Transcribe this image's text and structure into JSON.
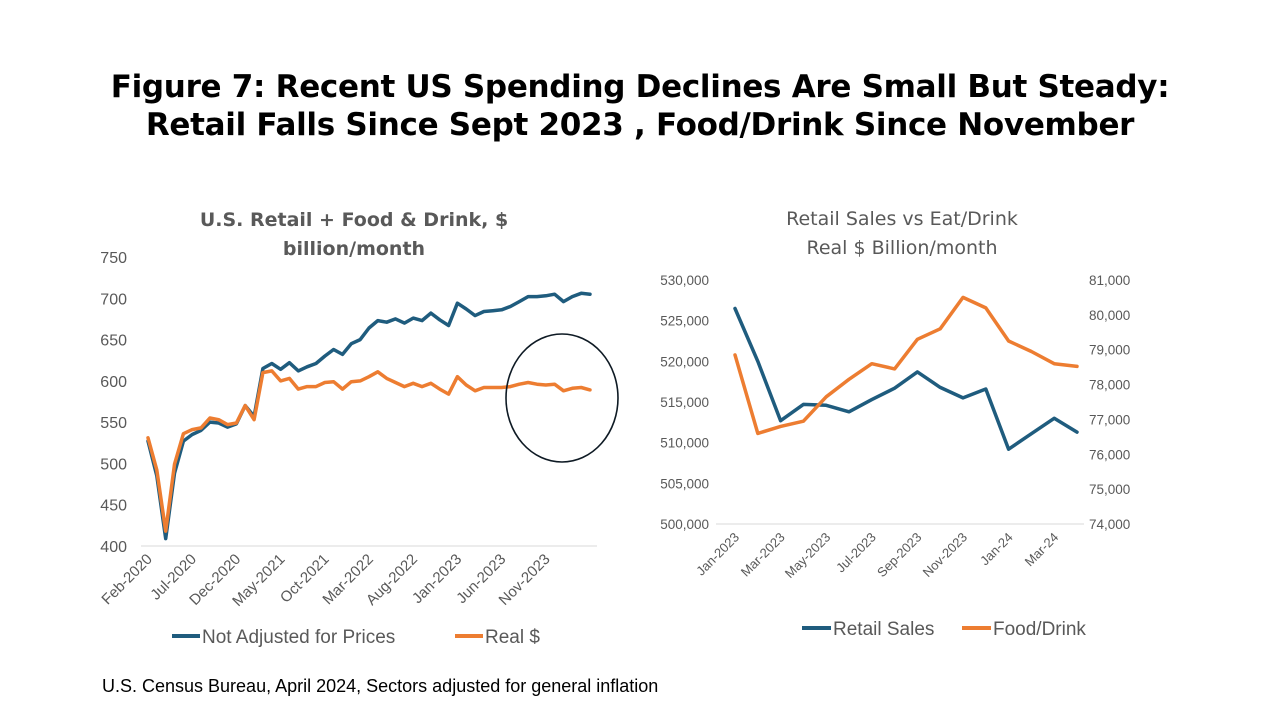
{
  "figure": {
    "title_line1": "Figure 7: Recent US Spending Declines Are Small But Steady:",
    "title_line2": "Retail Falls Since Sept 2023 , Food/Drink Since November",
    "source": "U.S. Census Bureau, April 2024, Sectors adjusted for general inflation"
  },
  "colors": {
    "blue": "#1F5C7E",
    "orange": "#ED7D31",
    "axis": "#595959",
    "circle": "#0E1A24"
  },
  "chart_data": [
    {
      "type": "line",
      "title": "U.S. Retail + Food & Drink, $ billion/month",
      "title_lines": [
        "U.S. Retail + Food & Drink, $",
        "billion/month"
      ],
      "xlabel": "",
      "ylabel": "",
      "ylim": [
        400,
        750
      ],
      "yticks": [
        "750",
        "700",
        "650",
        "600",
        "550",
        "500",
        "450",
        "400"
      ],
      "ytick_values": [
        750,
        700,
        650,
        600,
        550,
        500,
        450,
        400
      ],
      "xticks": [
        "Feb-2020",
        "Jul-2020",
        "Dec-2020",
        "May-2021",
        "Oct-2021",
        "Mar-2022",
        "Aug-2022",
        "Jan-2023",
        "Jun-2023",
        "Nov-2023"
      ],
      "xtick_index": [
        0,
        5,
        10,
        15,
        20,
        25,
        30,
        35,
        40,
        45
      ],
      "x_count": 51,
      "annotation": "circle around late-2023 to 2024 values",
      "legend": "bottom",
      "series": [
        {
          "name": "Not Adjusted for Prices",
          "color": "#1F5C7E",
          "values": [
            527,
            485,
            409,
            488,
            527,
            535,
            540,
            550,
            549,
            544,
            548,
            570,
            557,
            615,
            621,
            614,
            622,
            612,
            617,
            621,
            630,
            638,
            632,
            645,
            650,
            664,
            673,
            671,
            675,
            670,
            676,
            673,
            682,
            674,
            667,
            694,
            687,
            679,
            684,
            685,
            686,
            690,
            696,
            702,
            702,
            703,
            705,
            696,
            702,
            706,
            705
          ]
        },
        {
          "name": "Real $",
          "color": "#ED7D31",
          "values": [
            531,
            492,
            418,
            499,
            536,
            541,
            543,
            555,
            553,
            547,
            549,
            570,
            553,
            610,
            612,
            600,
            603,
            590,
            593,
            593,
            598,
            599,
            590,
            599,
            600,
            605,
            611,
            603,
            598,
            593,
            597,
            593,
            597,
            590,
            584,
            605,
            595,
            588,
            592,
            592,
            592,
            593,
            596,
            598,
            596,
            595,
            596,
            588,
            591,
            592,
            589
          ]
        }
      ]
    },
    {
      "type": "line",
      "title": "Retail Sales vs Eat/Drink Real $ Billion/month",
      "title_lines": [
        "Retail Sales vs Eat/Drink",
        "Real $ Billion/month"
      ],
      "xticks": [
        "Jan-2023",
        "Mar-2023",
        "May-2023",
        "Jul-2023",
        "Sep-2023",
        "Nov-2023",
        "Jan-24",
        "Mar-24"
      ],
      "xtick_index": [
        0,
        2,
        4,
        6,
        8,
        10,
        12,
        14
      ],
      "x_count": 16,
      "ylim_left": [
        500000,
        530000
      ],
      "yticks_left": [
        "530,000",
        "525,000",
        "520,000",
        "515,000",
        "510,000",
        "505,000",
        "500,000"
      ],
      "ytick_values_left": [
        530000,
        525000,
        520000,
        515000,
        510000,
        505000,
        500000
      ],
      "ylim_right": [
        74000,
        81000
      ],
      "yticks_right": [
        "81,000",
        "80,000",
        "79,000",
        "78,000",
        "77,000",
        "76,000",
        "75,000",
        "74,000"
      ],
      "ytick_values_right": [
        81000,
        80000,
        79000,
        78000,
        77000,
        76000,
        75000,
        74000
      ],
      "legend": "bottom",
      "series": [
        {
          "name": "Retail Sales",
          "color": "#1F5C7E",
          "axis": "left",
          "values": [
            526500,
            520000,
            512700,
            514700,
            514600,
            513800,
            515300,
            516700,
            518700,
            516800,
            515500,
            516600,
            509200,
            511100,
            513000,
            511300
          ]
        },
        {
          "name": "Food/Drink",
          "color": "#ED7D31",
          "axis": "right",
          "values": [
            78850,
            76600,
            76800,
            76950,
            77650,
            78150,
            78600,
            78450,
            79300,
            79600,
            80500,
            80200,
            79250,
            78950,
            78600,
            78520
          ]
        }
      ]
    }
  ]
}
